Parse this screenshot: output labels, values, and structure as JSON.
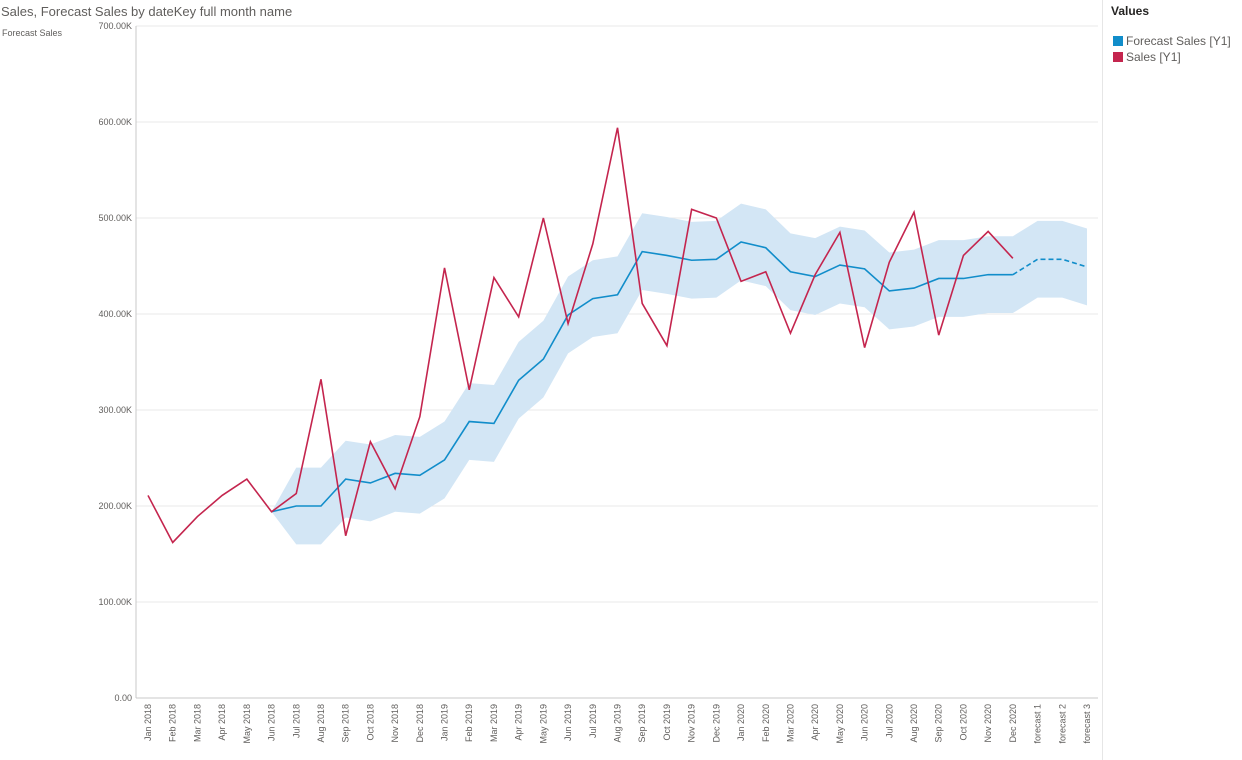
{
  "chart_title": "Sales, Forecast Sales by dateKey full month name",
  "axis_title": "Forecast Sales",
  "legend": {
    "title": "Values",
    "items": [
      {
        "label": "Forecast Sales [Y1]",
        "color": "#118dca"
      },
      {
        "label": "Sales [Y1]",
        "color": "#c4254e"
      }
    ]
  },
  "colors": {
    "band": "#d3e6f5",
    "forecast": "#118dca",
    "sales": "#c4254e",
    "grid": "#e9e9e9"
  },
  "chart_data": {
    "type": "line",
    "ylim": [
      0,
      700000
    ],
    "y_ticks": [
      {
        "value": 0,
        "label": "0.00"
      },
      {
        "value": 100000,
        "label": "100.00K"
      },
      {
        "value": 200000,
        "label": "200.00K"
      },
      {
        "value": 300000,
        "label": "300.00K"
      },
      {
        "value": 400000,
        "label": "400.00K"
      },
      {
        "value": 500000,
        "label": "500.00K"
      },
      {
        "value": 600000,
        "label": "600.00K"
      },
      {
        "value": 700000,
        "label": "700.00K"
      }
    ],
    "categories": [
      "Jan 2018",
      "Feb 2018",
      "Mar 2018",
      "Apr 2018",
      "May 2018",
      "Jun 2018",
      "Jul 2018",
      "Aug 2018",
      "Sep 2018",
      "Oct 2018",
      "Nov 2018",
      "Dec 2018",
      "Jan 2019",
      "Feb 2019",
      "Mar 2019",
      "Apr 2019",
      "May 2019",
      "Jun 2019",
      "Jul 2019",
      "Aug 2019",
      "Sep 2019",
      "Oct 2019",
      "Nov 2019",
      "Dec 2019",
      "Jan 2020",
      "Feb 2020",
      "Mar 2020",
      "Apr 2020",
      "May 2020",
      "Jun 2020",
      "Jul 2020",
      "Aug 2020",
      "Sep 2020",
      "Oct 2020",
      "Nov 2020",
      "Dec 2020",
      "forecast 1",
      "forecast 2",
      "forecast 3"
    ],
    "series": [
      {
        "name": "Sales [Y1]",
        "values": [
          211000,
          162000,
          189000,
          211000,
          228000,
          194000,
          213000,
          332000,
          169000,
          267000,
          218000,
          293000,
          448000,
          321000,
          438000,
          397000,
          500000,
          390000,
          473000,
          594000,
          411000,
          367000,
          509000,
          500000,
          434000,
          444000,
          380000,
          441000,
          485000,
          365000,
          454000,
          506000,
          378000,
          461000,
          486000,
          458000,
          null,
          null,
          null
        ]
      },
      {
        "name": "Forecast Sales [Y1]",
        "values": [
          null,
          null,
          null,
          null,
          null,
          194000,
          200000,
          200000,
          228000,
          224000,
          234000,
          232000,
          248000,
          288000,
          286000,
          331000,
          353000,
          399000,
          416000,
          420000,
          465000,
          461000,
          456000,
          457000,
          475000,
          469000,
          444000,
          439000,
          451000,
          447000,
          424000,
          427000,
          437000,
          437000,
          441000,
          441000,
          457000,
          457000,
          449000
        ],
        "forecast_from_index": 35
      },
      {
        "name": "Forecast Sales [Y1] upper",
        "values": [
          null,
          null,
          null,
          null,
          null,
          194000,
          240000,
          240000,
          268000,
          264000,
          274000,
          272000,
          288000,
          328000,
          326000,
          371000,
          393000,
          439000,
          456000,
          460000,
          505000,
          501000,
          496000,
          497000,
          515000,
          509000,
          484000,
          479000,
          491000,
          487000,
          464000,
          467000,
          477000,
          477000,
          481000,
          481000,
          497000,
          497000,
          489000
        ]
      },
      {
        "name": "Forecast Sales [Y1] lower",
        "values": [
          null,
          null,
          null,
          null,
          null,
          194000,
          160000,
          160000,
          188000,
          184000,
          194000,
          192000,
          208000,
          248000,
          246000,
          291000,
          313000,
          359000,
          376000,
          380000,
          425000,
          421000,
          416000,
          417000,
          435000,
          429000,
          404000,
          399000,
          411000,
          407000,
          384000,
          387000,
          397000,
          397000,
          401000,
          401000,
          417000,
          417000,
          409000
        ]
      }
    ]
  }
}
